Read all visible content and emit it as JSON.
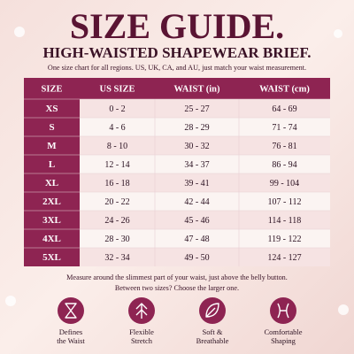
{
  "header": {
    "title": "SIZE GUIDE.",
    "subtitle": "HIGH-WAISTED SHAPEWEAR BRIEF.",
    "note": "One size chart for all regions. US, UK, CA, and AU, just match your waist measurement."
  },
  "table": {
    "headers": [
      "SIZE",
      "US SIZE",
      "WAIST (in)",
      "WAIST (cm)"
    ],
    "rows": [
      [
        "XS",
        "0 - 2",
        "25 - 27",
        "64 - 69"
      ],
      [
        "S",
        "4 - 6",
        "28 - 29",
        "71 - 74"
      ],
      [
        "M",
        "8 - 10",
        "30 - 32",
        "76 - 81"
      ],
      [
        "L",
        "12 - 14",
        "34 - 37",
        "86 - 94"
      ],
      [
        "XL",
        "16 - 18",
        "39 - 41",
        "99 - 104"
      ],
      [
        "2XL",
        "20 - 22",
        "42 - 44",
        "107 - 112"
      ],
      [
        "3XL",
        "24 - 26",
        "45 - 46",
        "114 - 118"
      ],
      [
        "4XL",
        "28 - 30",
        "47 - 48",
        "119 - 122"
      ],
      [
        "5XL",
        "32 - 34",
        "49 - 50",
        "124 - 127"
      ]
    ]
  },
  "footer": {
    "lines": [
      "Measure around the slimmest part of your waist, just above the belly button.",
      "Between two sizes? Choose the larger one."
    ]
  },
  "features": [
    {
      "lines": [
        "Defines",
        "the Waist"
      ]
    },
    {
      "lines": [
        "Flexible",
        "Stretch"
      ]
    },
    {
      "lines": [
        "Soft &",
        "Breathable"
      ]
    },
    {
      "lines": [
        "Comfortable",
        "Shaping"
      ]
    }
  ]
}
